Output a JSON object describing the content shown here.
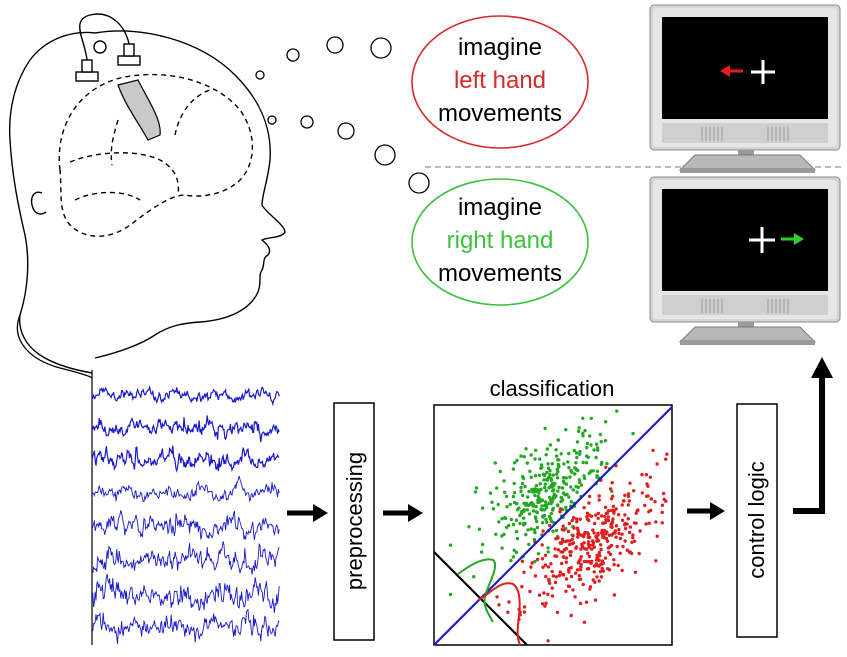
{
  "thoughts": {
    "left": {
      "line1": "imagine",
      "line2": "left hand",
      "line3": "movements",
      "border_color": "#d42a2a",
      "highlight_color": "#d42a2a"
    },
    "right": {
      "line1": "imagine",
      "line2": "right hand",
      "line3": "movements",
      "border_color": "#3cc23c",
      "highlight_color": "#3cc23c"
    }
  },
  "monitors": {
    "left_feedback": {
      "cue_symbol": "+",
      "arrow_color": "#e01e1e",
      "arrow_direction": "left"
    },
    "right_feedback": {
      "cue_symbol": "+",
      "arrow_color": "#2ecc2e",
      "arrow_direction": "right"
    }
  },
  "pipeline": {
    "preprocessing_label": "preprocessing",
    "classification_title": "classification",
    "control_label": "control logic"
  },
  "colors": {
    "eeg_trace": "#1a1ac8",
    "class_left": "#22a822",
    "class_right": "#e01e1e",
    "decision_line": "#1a1ac8"
  }
}
